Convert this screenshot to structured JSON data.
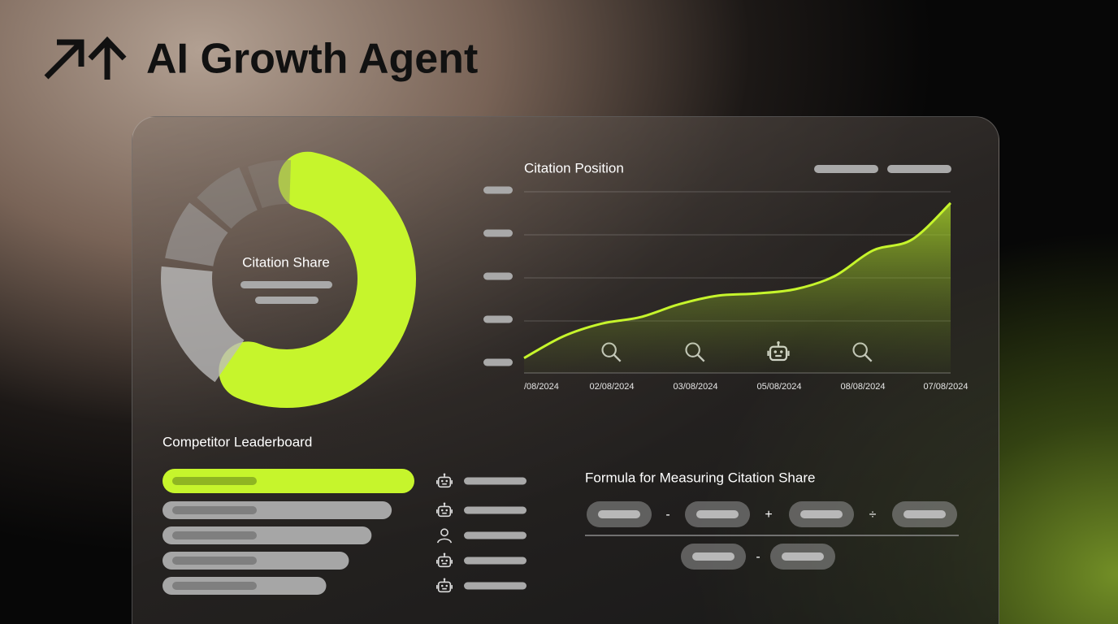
{
  "header": {
    "title": "AI Growth Agent"
  },
  "citation_share": {
    "type": "donut",
    "title": "Citation Share",
    "values": [
      58,
      18,
      9,
      8,
      7
    ],
    "colors": [
      "#c6f52c",
      "#bdbdbd",
      "#9c9a98",
      "#8f8a86",
      "#8a827c"
    ]
  },
  "citation_position": {
    "type": "line",
    "title": "Citation Position",
    "dates": [
      "/08/2024",
      "02/08/2024",
      "03/08/2024",
      "05/08/2024",
      "08/08/2024",
      "07/08/2024"
    ],
    "values": [
      0.1,
      0.6,
      0.9,
      1.05,
      1.35,
      1.55,
      1.6,
      1.7,
      2.0,
      2.6,
      2.85,
      3.7
    ],
    "ylim": [
      0,
      4
    ],
    "color": "#c6f52c"
  },
  "leaderboard": {
    "type": "bar",
    "title": "Competitor Leaderboard",
    "values": [
      100,
      91,
      83,
      74,
      65
    ],
    "xlim": [
      0,
      100
    ]
  },
  "formula": {
    "title": "Formula for Measuring Citation Share",
    "numerator_operators": [
      "-",
      "+",
      "÷"
    ],
    "denominator_operators": [
      "-"
    ]
  }
}
